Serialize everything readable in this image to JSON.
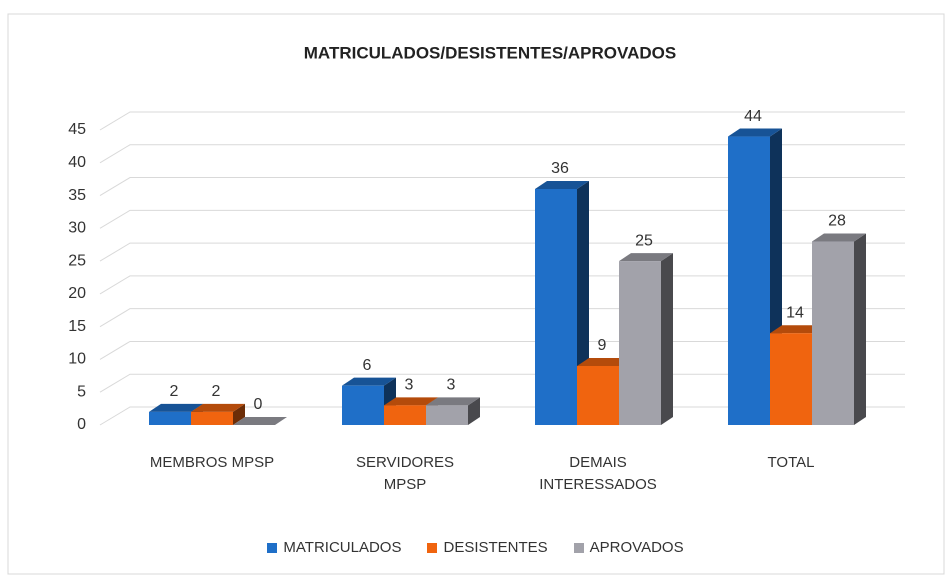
{
  "chart_data": {
    "type": "bar3d",
    "title": "MATRICULADOS/DESISTENTES/APROVADOS",
    "categories": [
      "MEMBROS MPSP",
      "SERVIDORES MPSP",
      "DEMAIS INTERESSADOS",
      "TOTAL"
    ],
    "series": [
      {
        "name": "MATRICULADOS",
        "color": "#1f6fc8",
        "values": [
          2,
          6,
          36,
          44
        ]
      },
      {
        "name": "DESISTENTES",
        "color": "#f0640f",
        "values": [
          2,
          3,
          9,
          14
        ]
      },
      {
        "name": "APROVADOS",
        "color": "#a2a2aa",
        "values": [
          0,
          3,
          25,
          28
        ]
      }
    ],
    "ylim": [
      0,
      45
    ],
    "yticks": [
      0,
      5,
      10,
      15,
      20,
      25,
      30,
      35,
      40,
      45
    ],
    "grid": true,
    "legend": "bottom"
  }
}
